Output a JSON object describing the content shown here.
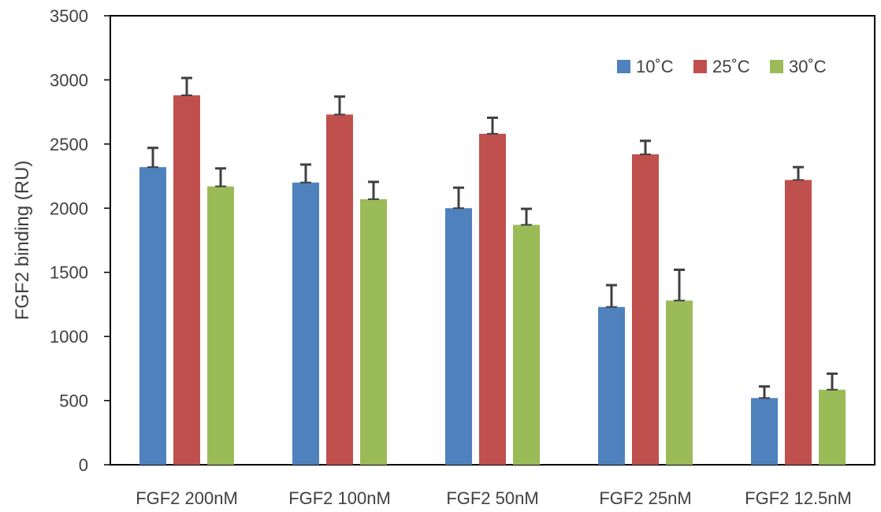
{
  "chart_data": {
    "type": "bar",
    "title": "",
    "xlabel": "",
    "ylabel": "FGF2 binding (RU)",
    "ylim": [
      0,
      3500
    ],
    "yticks": [
      0,
      500,
      1000,
      1500,
      2000,
      2500,
      3000,
      3500
    ],
    "grid": false,
    "legend_position": "top-right",
    "categories": [
      "FGF2 200nM",
      "FGF2 100nM",
      "FGF2 50nM",
      "FGF2 25nM",
      "FGF2 12.5nM"
    ],
    "series": [
      {
        "name": "10˚C",
        "color": "#4F81BD",
        "values": [
          2320,
          2200,
          2000,
          1230,
          520
        ],
        "errors": [
          150,
          140,
          160,
          170,
          90
        ]
      },
      {
        "name": "25˚C",
        "color": "#C0504D",
        "values": [
          2880,
          2730,
          2580,
          2420,
          2220
        ],
        "errors": [
          135,
          140,
          125,
          105,
          100
        ]
      },
      {
        "name": "30˚C",
        "color": "#9BBB59",
        "values": [
          2170,
          2070,
          1870,
          1280,
          585
        ],
        "errors": [
          140,
          135,
          125,
          240,
          125
        ]
      }
    ]
  }
}
